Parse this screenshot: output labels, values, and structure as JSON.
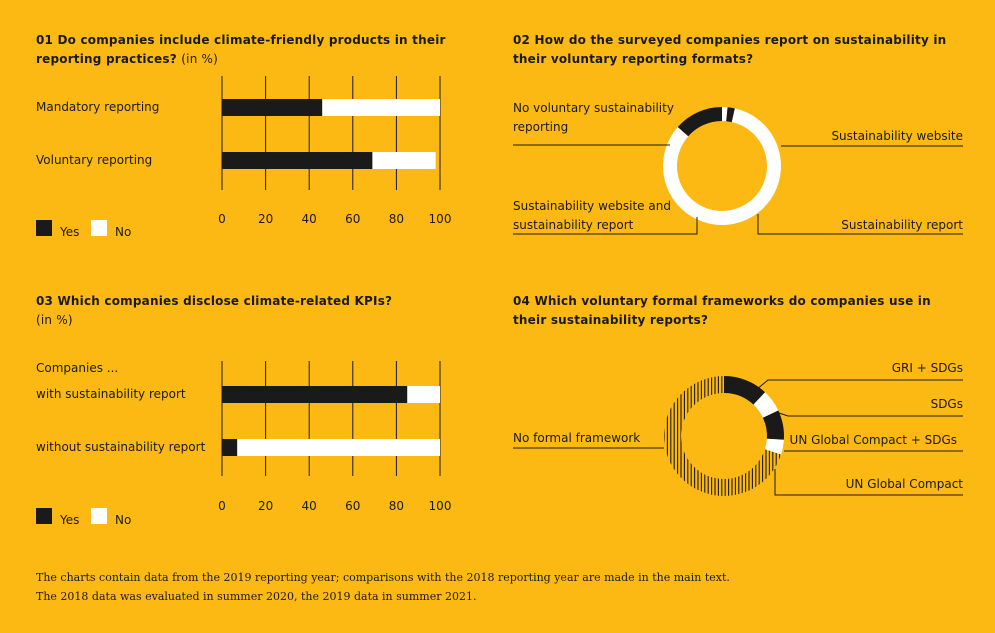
{
  "chart_data": [
    {
      "type": "bar",
      "title": "01 Do companies include climate-friendly products in their reporting practices?",
      "subtitle": "(in %)",
      "categories": [
        "Mandatory reporting",
        "Voluntary reporting"
      ],
      "series": [
        {
          "name": "Yes",
          "values": [
            46,
            69
          ]
        },
        {
          "name": "No",
          "values": [
            54,
            29
          ]
        }
      ],
      "ticks": [
        "0",
        "20",
        "40",
        "60",
        "80",
        "100"
      ],
      "xlim": [
        0,
        100
      ],
      "legend": [
        "Yes",
        "No"
      ]
    },
    {
      "type": "pie",
      "title": "02 How do the surveyed companies report on sustainability in their voluntary reporting formats?",
      "labels": [
        "Sustainability website",
        "Sustainability report",
        "Sustainability website and sustainability report",
        "No voluntary sustainability reporting"
      ],
      "values": [
        1.5,
        2,
        83,
        13.5
      ],
      "colors": [
        "#ffffff",
        "#1a1a1a",
        "#ffffff",
        "#1a1a1a"
      ]
    },
    {
      "type": "bar",
      "title": "03 Which companies disclose climate-related KPIs?",
      "subtitle": "(in %)",
      "group_label": "Companies ...",
      "categories": [
        "with sustainability report",
        "without sustainability report"
      ],
      "series": [
        {
          "name": "Yes",
          "values": [
            85,
            7
          ]
        },
        {
          "name": "No",
          "values": [
            15,
            93
          ]
        }
      ],
      "ticks": [
        "0",
        "20",
        "40",
        "60",
        "80",
        "100"
      ],
      "xlim": [
        0,
        100
      ],
      "legend": [
        "Yes",
        "No"
      ]
    },
    {
      "type": "pie",
      "title": "04 Which voluntary formal frameworks do companies use in their sustainability reports?",
      "labels": [
        "GRI + SDGs",
        "SDGs",
        "UN Global Compact + SDGs",
        "UN Global Compact",
        "No formal framework"
      ],
      "values": [
        12,
        6,
        8,
        4,
        70
      ],
      "colors": [
        "#1a1a1a",
        "#ffffff",
        "#1a1a1a",
        "#ffffff",
        "hatch"
      ]
    }
  ],
  "colors": {
    "background": "#FDB913",
    "yes": "#1a1a1a",
    "no": "#ffffff"
  },
  "footnotes": [
    "The charts contain data from the 2019 reporting year; comparisons with the 2018 reporting year are made in the main text.",
    "The 2018 data was evaluated in summer 2020, the 2019 data in summer 2021."
  ]
}
